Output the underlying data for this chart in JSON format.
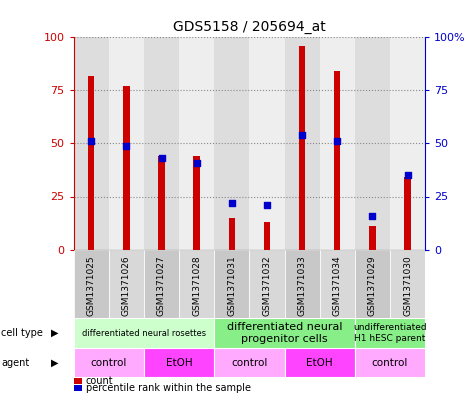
{
  "title": "GDS5158 / 205694_at",
  "samples": [
    "GSM1371025",
    "GSM1371026",
    "GSM1371027",
    "GSM1371028",
    "GSM1371031",
    "GSM1371032",
    "GSM1371033",
    "GSM1371034",
    "GSM1371029",
    "GSM1371030"
  ],
  "counts": [
    82,
    77,
    44,
    44,
    15,
    13,
    96,
    84,
    11,
    34
  ],
  "percentiles": [
    51,
    49,
    43,
    41,
    22,
    21,
    54,
    51,
    16,
    35
  ],
  "bar_color": "#cc0000",
  "dot_color": "#0000cc",
  "ylim_left": [
    0,
    100
  ],
  "ylim_right": [
    0,
    100
  ],
  "yticks": [
    0,
    25,
    50,
    75,
    100
  ],
  "left_ycolor": "#cc0000",
  "right_ycolor": "#0000cc",
  "cell_type_groups": [
    {
      "label": "differentiated neural rosettes",
      "start": 0,
      "end": 3,
      "color": "#ccffcc",
      "fontsize": 6
    },
    {
      "label": "differentiated neural\nprogenitor cells",
      "start": 4,
      "end": 7,
      "color": "#88ee88",
      "fontsize": 8
    },
    {
      "label": "undifferentiated\nH1 hESC parent",
      "start": 8,
      "end": 9,
      "color": "#88ee88",
      "fontsize": 6.5
    }
  ],
  "agent_groups": [
    {
      "label": "control",
      "start": 0,
      "end": 1,
      "color": "#ffaaff"
    },
    {
      "label": "EtOH",
      "start": 2,
      "end": 3,
      "color": "#ff44ff"
    },
    {
      "label": "control",
      "start": 4,
      "end": 5,
      "color": "#ffaaff"
    },
    {
      "label": "EtOH",
      "start": 6,
      "end": 7,
      "color": "#ff44ff"
    },
    {
      "label": "control",
      "start": 8,
      "end": 9,
      "color": "#ffaaff"
    }
  ],
  "cell_type_label": "cell type",
  "agent_label": "agent",
  "legend_count_label": "count",
  "legend_pct_label": "percentile rank within the sample",
  "bg_color": "#ffffff",
  "grid_color": "#888888",
  "col_bg_odd": "#dddddd",
  "col_bg_even": "#eeeeee"
}
